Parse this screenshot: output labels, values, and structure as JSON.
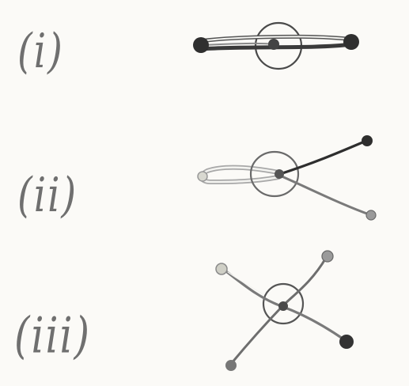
{
  "labels": {
    "case_1": "(i)",
    "case_2": "(ii)",
    "case_3": "(iii)"
  },
  "colors": {
    "paper": "#fbfaf7",
    "ink_dark": "#3a3a3a",
    "ink_mid": "#6a6a6a",
    "ink_light": "#a6a6a6"
  }
}
